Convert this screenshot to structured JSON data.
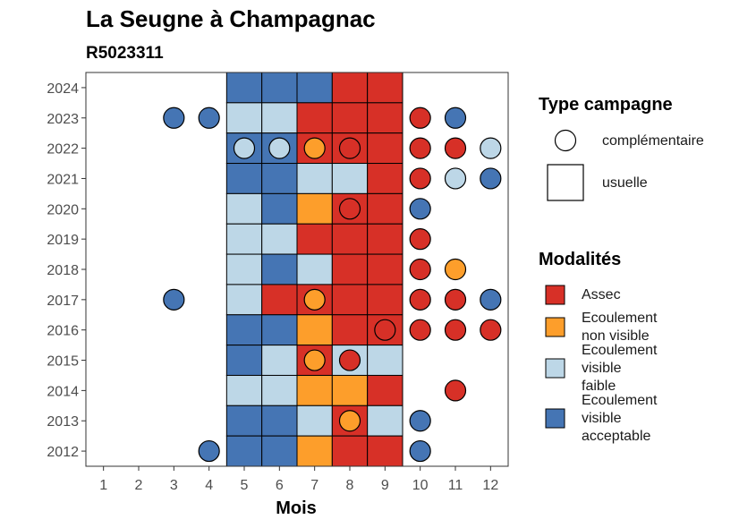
{
  "chart_data": {
    "type": "heatmap",
    "title": "La Seugne à Champagnac",
    "subtitle": "R5023311",
    "xlabel": "Mois",
    "ylabel": "",
    "x_ticks": [
      "1",
      "2",
      "3",
      "4",
      "5",
      "6",
      "7",
      "8",
      "9",
      "10",
      "11",
      "12"
    ],
    "y_ticks": [
      "2012",
      "2013",
      "2014",
      "2015",
      "2016",
      "2017",
      "2018",
      "2019",
      "2020",
      "2021",
      "2022",
      "2023",
      "2024"
    ],
    "xlim": [
      0.5,
      12.5
    ],
    "ylim": [
      2011.5,
      2024.5
    ],
    "grid": false,
    "legend_placement": "right",
    "legend_type": {
      "title": "Type campagne",
      "entries": [
        {
          "label": "complémentaire",
          "shape": "circle"
        },
        {
          "label": "usuelle",
          "shape": "square"
        }
      ]
    },
    "legend_modalites": {
      "title": "Modalités",
      "entries": [
        {
          "key": "A",
          "lines": [
            "Assec"
          ],
          "color": "#d73027"
        },
        {
          "key": "N",
          "lines": [
            "Ecoulement",
            "non visible"
          ],
          "color": "#fd9e2b"
        },
        {
          "key": "F",
          "lines": [
            "Ecoulement",
            "visible",
            "faible"
          ],
          "color": "#bdd7e7"
        },
        {
          "key": "V",
          "lines": [
            "Ecoulement",
            "visible",
            "acceptable"
          ],
          "color": "#4575b4"
        }
      ]
    },
    "usuelle": [
      {
        "year": 2024,
        "months": [
          "V",
          "V",
          "V",
          "A",
          "A"
        ]
      },
      {
        "year": 2023,
        "months": [
          "F",
          "F",
          "A",
          "A",
          "A"
        ]
      },
      {
        "year": 2022,
        "months": [
          "V",
          "V",
          "A",
          "A",
          "A"
        ]
      },
      {
        "year": 2021,
        "months": [
          "V",
          "V",
          "F",
          "F",
          "A"
        ]
      },
      {
        "year": 2020,
        "months": [
          "F",
          "V",
          "N",
          "A",
          "A"
        ]
      },
      {
        "year": 2019,
        "months": [
          "F",
          "F",
          "A",
          "A",
          "A"
        ]
      },
      {
        "year": 2018,
        "months": [
          "F",
          "V",
          "F",
          "A",
          "A"
        ]
      },
      {
        "year": 2017,
        "months": [
          "F",
          "A",
          "A",
          "A",
          "A"
        ]
      },
      {
        "year": 2016,
        "months": [
          "V",
          "V",
          "N",
          "A",
          "A"
        ]
      },
      {
        "year": 2015,
        "months": [
          "V",
          "F",
          "A",
          "F",
          "F"
        ]
      },
      {
        "year": 2014,
        "months": [
          "F",
          "F",
          "N",
          "N",
          "A"
        ]
      },
      {
        "year": 2013,
        "months": [
          "V",
          "V",
          "F",
          "A",
          "F"
        ]
      },
      {
        "year": 2012,
        "months": [
          "V",
          "V",
          "N",
          "A",
          "A"
        ]
      }
    ],
    "usuelle_months": [
      5,
      6,
      7,
      8,
      9
    ],
    "complementaire": [
      {
        "year": 2023,
        "month": 3,
        "m": "V"
      },
      {
        "year": 2023,
        "month": 4,
        "m": "V"
      },
      {
        "year": 2023,
        "month": 10,
        "m": "A"
      },
      {
        "year": 2023,
        "month": 11,
        "m": "V"
      },
      {
        "year": 2022,
        "month": 5,
        "m": "F"
      },
      {
        "year": 2022,
        "month": 6,
        "m": "F"
      },
      {
        "year": 2022,
        "month": 7,
        "m": "N"
      },
      {
        "year": 2022,
        "month": 8,
        "m": "A"
      },
      {
        "year": 2022,
        "month": 10,
        "m": "A"
      },
      {
        "year": 2022,
        "month": 11,
        "m": "A"
      },
      {
        "year": 2022,
        "month": 12,
        "m": "F"
      },
      {
        "year": 2021,
        "month": 10,
        "m": "A"
      },
      {
        "year": 2021,
        "month": 11,
        "m": "F"
      },
      {
        "year": 2021,
        "month": 12,
        "m": "V"
      },
      {
        "year": 2020,
        "month": 8,
        "m": "A"
      },
      {
        "year": 2020,
        "month": 10,
        "m": "V"
      },
      {
        "year": 2019,
        "month": 10,
        "m": "A"
      },
      {
        "year": 2018,
        "month": 10,
        "m": "A"
      },
      {
        "year": 2018,
        "month": 11,
        "m": "N"
      },
      {
        "year": 2017,
        "month": 3,
        "m": "V"
      },
      {
        "year": 2017,
        "month": 7,
        "m": "N"
      },
      {
        "year": 2017,
        "month": 10,
        "m": "A"
      },
      {
        "year": 2017,
        "month": 11,
        "m": "A"
      },
      {
        "year": 2017,
        "month": 12,
        "m": "V"
      },
      {
        "year": 2016,
        "month": 9,
        "m": "A"
      },
      {
        "year": 2016,
        "month": 10,
        "m": "A"
      },
      {
        "year": 2016,
        "month": 11,
        "m": "A"
      },
      {
        "year": 2016,
        "month": 12,
        "m": "A"
      },
      {
        "year": 2015,
        "month": 7,
        "m": "N"
      },
      {
        "year": 2015,
        "month": 8,
        "m": "A"
      },
      {
        "year": 2014,
        "month": 11,
        "m": "A"
      },
      {
        "year": 2013,
        "month": 8,
        "m": "N"
      },
      {
        "year": 2013,
        "month": 10,
        "m": "V"
      },
      {
        "year": 2012,
        "month": 4,
        "m": "V"
      },
      {
        "year": 2012,
        "month": 10,
        "m": "V"
      }
    ]
  }
}
